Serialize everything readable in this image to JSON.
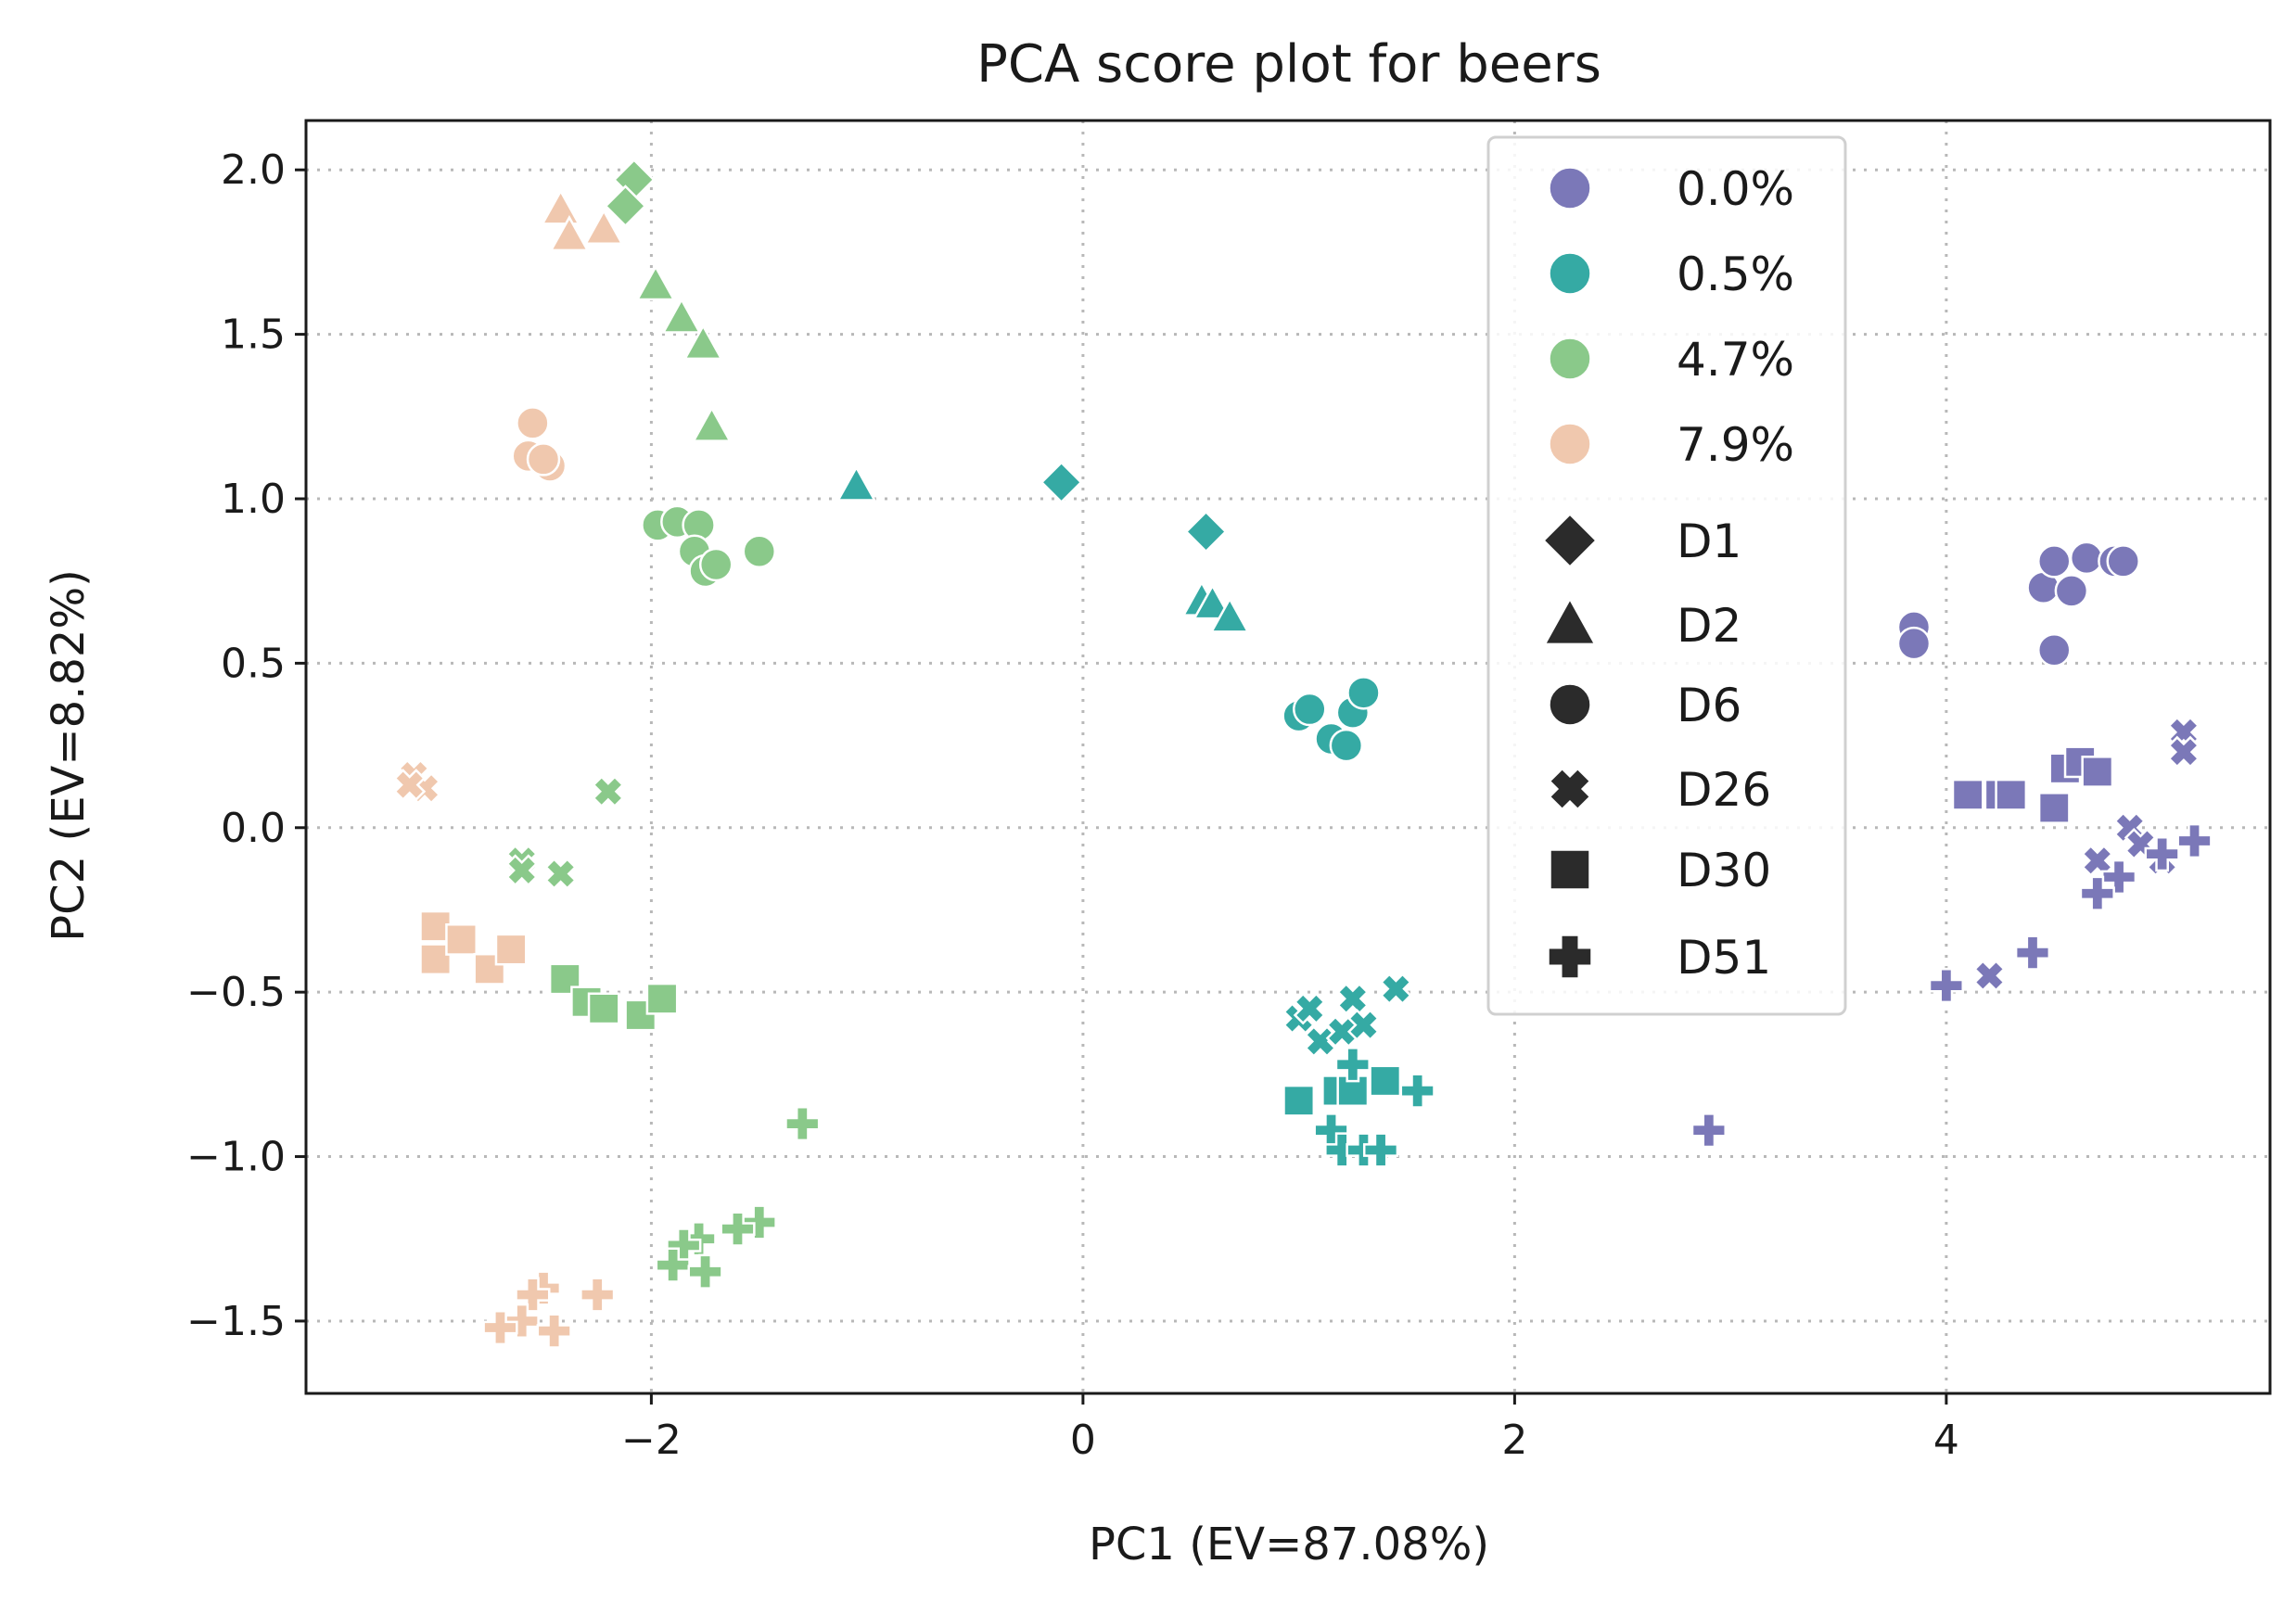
{
  "chart_data": {
    "type": "scatter",
    "title": "PCA score plot for beers",
    "xlabel": "PC1 (EV=87.08%)",
    "ylabel": "PC2 (EV=8.82%)",
    "xlim": [
      -3.6,
      5.5
    ],
    "ylim": [
      -1.72,
      2.15
    ],
    "xticks": [
      -2,
      0,
      2,
      4
    ],
    "yticks": [
      -1.5,
      -1.0,
      -0.5,
      0.0,
      0.5,
      1.0,
      1.5,
      2.0
    ],
    "xtick_labels": [
      "−2",
      "0",
      "2",
      "4"
    ],
    "ytick_labels": [
      "−1.5",
      "−1.0",
      "−0.5",
      "0.0",
      "0.5",
      "1.0",
      "1.5",
      "2.0"
    ],
    "grid": true,
    "legend_placement": "upper-right-center",
    "hue_legend": [
      {
        "label": "0.0%",
        "color": "#7b78b8"
      },
      {
        "label": "0.5%",
        "color": "#35aaa4"
      },
      {
        "label": "4.7%",
        "color": "#8ac98a"
      },
      {
        "label": "7.9%",
        "color": "#f0c8ae"
      }
    ],
    "style_legend": [
      {
        "label": "D1",
        "marker": "diamond"
      },
      {
        "label": "D2",
        "marker": "triangle"
      },
      {
        "label": "D6",
        "marker": "circle"
      },
      {
        "label": "D26",
        "marker": "x"
      },
      {
        "label": "D30",
        "marker": "square"
      },
      {
        "label": "D51",
        "marker": "plus"
      }
    ],
    "series": [
      {
        "hue": "0.0%",
        "marker": "circle",
        "points": [
          [
            3.85,
            0.61
          ],
          [
            3.85,
            0.56
          ],
          [
            4.45,
            0.73
          ],
          [
            4.5,
            0.81
          ],
          [
            4.58,
            0.72
          ],
          [
            4.65,
            0.82
          ],
          [
            4.78,
            0.81
          ],
          [
            4.82,
            0.81
          ],
          [
            4.5,
            0.54
          ]
        ]
      },
      {
        "hue": "0.0%",
        "marker": "square",
        "points": [
          [
            4.1,
            0.1
          ],
          [
            4.25,
            0.1
          ],
          [
            4.3,
            0.1
          ],
          [
            4.5,
            0.06
          ],
          [
            4.55,
            0.18
          ],
          [
            4.62,
            0.2
          ],
          [
            4.7,
            0.17
          ]
        ]
      },
      {
        "hue": "0.0%",
        "marker": "x",
        "points": [
          [
            5.1,
            0.29
          ],
          [
            5.1,
            0.23
          ],
          [
            4.85,
            0.0
          ],
          [
            4.9,
            -0.05
          ],
          [
            4.7,
            -0.1
          ],
          [
            5.0,
            -0.1
          ],
          [
            4.2,
            -0.45
          ]
        ]
      },
      {
        "hue": "0.0%",
        "marker": "plus",
        "points": [
          [
            5.15,
            -0.04
          ],
          [
            5.0,
            -0.08
          ],
          [
            4.8,
            -0.15
          ],
          [
            4.7,
            -0.2
          ],
          [
            4.4,
            -0.38
          ],
          [
            4.0,
            -0.48
          ],
          [
            2.9,
            -0.92
          ]
        ]
      },
      {
        "hue": "0.5%",
        "marker": "diamond",
        "points": [
          [
            -0.1,
            1.05
          ],
          [
            0.57,
            0.9
          ]
        ]
      },
      {
        "hue": "0.5%",
        "marker": "triangle",
        "points": [
          [
            -1.05,
            1.04
          ],
          [
            0.55,
            0.69
          ],
          [
            0.6,
            0.68
          ],
          [
            0.68,
            0.64
          ]
        ]
      },
      {
        "hue": "0.5%",
        "marker": "circle",
        "points": [
          [
            1.0,
            0.34
          ],
          [
            1.05,
            0.36
          ],
          [
            1.15,
            0.27
          ],
          [
            1.22,
            0.25
          ],
          [
            1.25,
            0.35
          ],
          [
            1.3,
            0.41
          ]
        ]
      },
      {
        "hue": "0.5%",
        "marker": "x",
        "points": [
          [
            1.0,
            -0.58
          ],
          [
            1.05,
            -0.55
          ],
          [
            1.1,
            -0.65
          ],
          [
            1.2,
            -0.62
          ],
          [
            1.25,
            -0.52
          ],
          [
            1.3,
            -0.6
          ],
          [
            1.45,
            -0.49
          ]
        ]
      },
      {
        "hue": "0.5%",
        "marker": "square",
        "points": [
          [
            1.0,
            -0.83
          ],
          [
            1.18,
            -0.8
          ],
          [
            1.25,
            -0.8
          ],
          [
            1.4,
            -0.77
          ]
        ]
      },
      {
        "hue": "0.5%",
        "marker": "plus",
        "points": [
          [
            1.25,
            -0.72
          ],
          [
            1.55,
            -0.8
          ],
          [
            1.15,
            -0.92
          ],
          [
            1.2,
            -0.98
          ],
          [
            1.3,
            -0.98
          ],
          [
            1.38,
            -0.98
          ]
        ]
      },
      {
        "hue": "4.7%",
        "marker": "diamond",
        "points": [
          [
            -2.08,
            1.97
          ],
          [
            -2.12,
            1.89
          ]
        ]
      },
      {
        "hue": "4.7%",
        "marker": "triangle",
        "points": [
          [
            -1.98,
            1.65
          ],
          [
            -1.86,
            1.55
          ],
          [
            -1.76,
            1.47
          ],
          [
            -1.72,
            1.22
          ]
        ]
      },
      {
        "hue": "4.7%",
        "marker": "circle",
        "points": [
          [
            -1.97,
            0.92
          ],
          [
            -1.88,
            0.93
          ],
          [
            -1.78,
            0.92
          ],
          [
            -1.8,
            0.84
          ],
          [
            -1.75,
            0.78
          ],
          [
            -1.7,
            0.8
          ],
          [
            -1.5,
            0.84
          ]
        ]
      },
      {
        "hue": "4.7%",
        "marker": "x",
        "points": [
          [
            -2.2,
            0.11
          ],
          [
            -2.6,
            -0.1
          ],
          [
            -2.6,
            -0.13
          ],
          [
            -2.42,
            -0.14
          ]
        ]
      },
      {
        "hue": "4.7%",
        "marker": "square",
        "points": [
          [
            -2.4,
            -0.46
          ],
          [
            -2.3,
            -0.53
          ],
          [
            -2.22,
            -0.55
          ],
          [
            -2.05,
            -0.57
          ],
          [
            -1.95,
            -0.52
          ]
        ]
      },
      {
        "hue": "4.7%",
        "marker": "plus",
        "points": [
          [
            -1.3,
            -0.9
          ],
          [
            -1.5,
            -1.2
          ],
          [
            -1.6,
            -1.22
          ],
          [
            -1.78,
            -1.25
          ],
          [
            -1.85,
            -1.27
          ],
          [
            -1.9,
            -1.33
          ],
          [
            -1.75,
            -1.35
          ]
        ]
      },
      {
        "hue": "7.9%",
        "marker": "triangle",
        "points": [
          [
            -2.42,
            1.88
          ],
          [
            -2.38,
            1.8
          ],
          [
            -2.22,
            1.82
          ]
        ]
      },
      {
        "hue": "7.9%",
        "marker": "circle",
        "points": [
          [
            -2.55,
            1.23
          ],
          [
            -2.57,
            1.13
          ],
          [
            -2.47,
            1.1
          ],
          [
            -2.5,
            1.12
          ]
        ]
      },
      {
        "hue": "7.9%",
        "marker": "x",
        "points": [
          [
            -3.1,
            0.16
          ],
          [
            -3.05,
            0.12
          ],
          [
            -3.12,
            0.13
          ]
        ]
      },
      {
        "hue": "7.9%",
        "marker": "square",
        "points": [
          [
            -3.0,
            -0.3
          ],
          [
            -3.0,
            -0.4
          ],
          [
            -2.88,
            -0.34
          ],
          [
            -2.75,
            -0.43
          ],
          [
            -2.65,
            -0.37
          ]
        ]
      },
      {
        "hue": "7.9%",
        "marker": "plus",
        "points": [
          [
            -2.5,
            -1.4
          ],
          [
            -2.55,
            -1.42
          ],
          [
            -2.25,
            -1.42
          ],
          [
            -2.6,
            -1.5
          ],
          [
            -2.7,
            -1.52
          ],
          [
            -2.45,
            -1.53
          ]
        ]
      }
    ]
  }
}
